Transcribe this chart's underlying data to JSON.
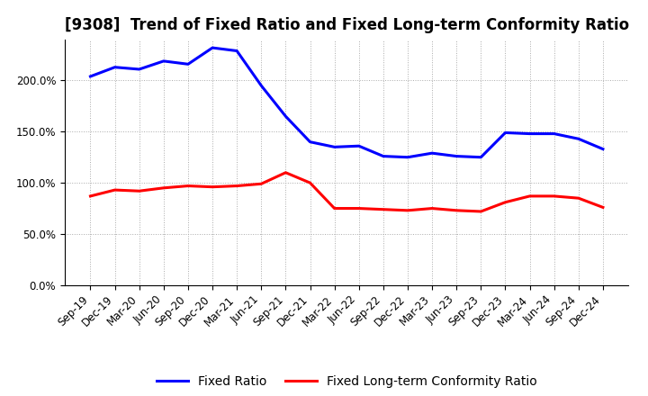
{
  "title": "[9308]  Trend of Fixed Ratio and Fixed Long-term Conformity Ratio",
  "x_labels": [
    "Sep-19",
    "Dec-19",
    "Mar-20",
    "Jun-20",
    "Sep-20",
    "Dec-20",
    "Mar-21",
    "Jun-21",
    "Sep-21",
    "Dec-21",
    "Mar-22",
    "Jun-22",
    "Sep-22",
    "Dec-22",
    "Mar-23",
    "Jun-23",
    "Sep-23",
    "Dec-23",
    "Mar-24",
    "Jun-24",
    "Sep-24",
    "Dec-24"
  ],
  "fixed_ratio": [
    204,
    213,
    211,
    219,
    216,
    232,
    229,
    195,
    165,
    140,
    135,
    136,
    126,
    125,
    129,
    126,
    125,
    149,
    148,
    148,
    143,
    133
  ],
  "fixed_lt_ratio": [
    87,
    93,
    92,
    95,
    97,
    96,
    97,
    99,
    110,
    100,
    75,
    75,
    74,
    73,
    75,
    73,
    72,
    81,
    87,
    87,
    85,
    76
  ],
  "ylim": [
    0,
    240
  ],
  "yticks": [
    0,
    50,
    100,
    150,
    200
  ],
  "ytick_labels": [
    "0.0%",
    "50.0%",
    "100.0%",
    "150.0%",
    "200.0%"
  ],
  "blue_color": "#0000FF",
  "red_color": "#FF0000",
  "grid_color": "#AAAAAA",
  "background_color": "#FFFFFF",
  "plot_bg_color": "#FFFFFF",
  "legend_fixed_ratio": "Fixed Ratio",
  "legend_fixed_lt_ratio": "Fixed Long-term Conformity Ratio",
  "title_fontsize": 12,
  "tick_fontsize": 8.5,
  "legend_fontsize": 10,
  "line_width": 2.2
}
